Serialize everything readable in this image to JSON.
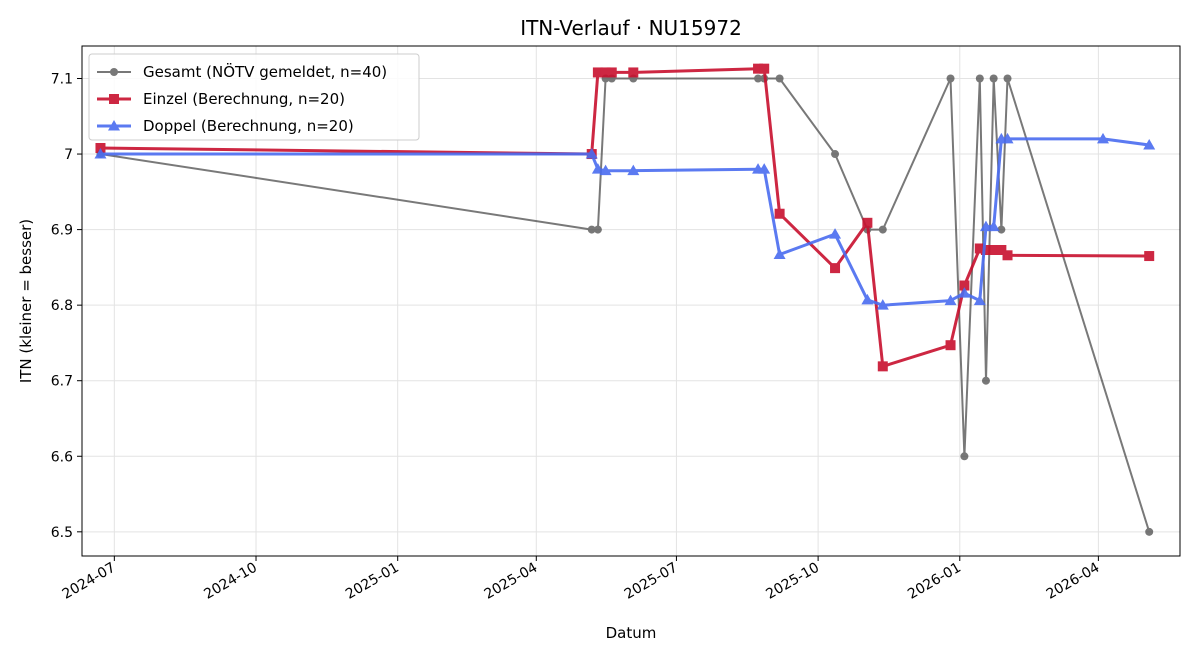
{
  "chart_data": {
    "type": "line",
    "title": "ITN-Verlauf · NU15972",
    "xlabel": "Datum",
    "ylabel": "ITN  (kleiner = besser)",
    "x_range": [
      "2024-06-10",
      "2026-05-24"
    ],
    "ylim": [
      6.468,
      7.143
    ],
    "x_ticks": [
      "2024-07",
      "2024-10",
      "2025-01",
      "2025-04",
      "2025-07",
      "2025-10",
      "2026-01",
      "2026-04"
    ],
    "y_ticks": [
      6.5,
      6.6,
      6.7,
      6.8,
      6.9,
      7.0,
      7.1
    ],
    "grid": true,
    "legend_position": "top-left",
    "series": [
      {
        "name": "Gesamt (NÖTV gemeldet, n=40)",
        "color": "#404040",
        "marker": "circle",
        "points": [
          [
            "2024-06-22",
            7.0
          ],
          [
            "2025-05-07",
            6.9
          ],
          [
            "2025-05-11",
            6.9
          ],
          [
            "2025-05-16",
            7.1
          ],
          [
            "2025-05-20",
            7.1
          ],
          [
            "2025-06-03",
            7.1
          ],
          [
            "2025-08-23",
            7.1
          ],
          [
            "2025-08-27",
            7.1
          ],
          [
            "2025-09-06",
            7.1
          ],
          [
            "2025-10-12",
            7.0
          ],
          [
            "2025-11-02",
            6.9
          ],
          [
            "2025-11-12",
            6.9
          ],
          [
            "2025-12-26",
            7.1
          ],
          [
            "2026-01-04",
            6.6
          ],
          [
            "2026-01-14",
            7.1
          ],
          [
            "2026-01-18",
            6.7
          ],
          [
            "2026-01-23",
            7.1
          ],
          [
            "2026-01-28",
            6.9
          ],
          [
            "2026-02-01",
            7.1
          ],
          [
            "2026-05-04",
            6.5
          ]
        ]
      },
      {
        "name": "Einzel (Berechnung, n=20)",
        "color": "#c8102e",
        "marker": "square",
        "points": [
          [
            "2024-06-22",
            7.008
          ],
          [
            "2025-05-07",
            7.0
          ],
          [
            "2025-05-11",
            7.108
          ],
          [
            "2025-05-16",
            7.108
          ],
          [
            "2025-05-20",
            7.108
          ],
          [
            "2025-06-03",
            7.108
          ],
          [
            "2025-08-23",
            7.113
          ],
          [
            "2025-08-27",
            7.113
          ],
          [
            "2025-09-06",
            6.921
          ],
          [
            "2025-10-12",
            6.849
          ],
          [
            "2025-11-02",
            6.909
          ],
          [
            "2025-11-12",
            6.719
          ],
          [
            "2025-12-26",
            6.747
          ],
          [
            "2026-01-04",
            6.826
          ],
          [
            "2026-01-14",
            6.875
          ],
          [
            "2026-01-18",
            6.873
          ],
          [
            "2026-01-23",
            6.873
          ],
          [
            "2026-01-28",
            6.873
          ],
          [
            "2026-02-01",
            6.866
          ],
          [
            "2026-05-04",
            6.865
          ]
        ]
      },
      {
        "name": "Doppel (Berechnung, n=20)",
        "color": "#4a6cf0",
        "marker": "triangle",
        "points": [
          [
            "2024-06-22",
            7.0
          ],
          [
            "2025-05-07",
            7.0
          ],
          [
            "2025-05-11",
            6.98
          ],
          [
            "2025-05-16",
            6.978
          ],
          [
            "2025-06-03",
            6.978
          ],
          [
            "2025-08-23",
            6.98
          ],
          [
            "2025-08-27",
            6.98
          ],
          [
            "2025-09-06",
            6.867
          ],
          [
            "2025-10-12",
            6.894
          ],
          [
            "2025-11-02",
            6.807
          ],
          [
            "2025-11-12",
            6.8
          ],
          [
            "2025-12-26",
            6.806
          ],
          [
            "2026-01-04",
            6.816
          ],
          [
            "2026-01-14",
            6.806
          ],
          [
            "2026-01-18",
            6.904
          ],
          [
            "2026-01-23",
            6.904
          ],
          [
            "2026-01-28",
            7.02
          ],
          [
            "2026-02-01",
            7.02
          ],
          [
            "2026-04-04",
            7.02
          ],
          [
            "2026-05-04",
            7.012
          ]
        ]
      }
    ]
  }
}
